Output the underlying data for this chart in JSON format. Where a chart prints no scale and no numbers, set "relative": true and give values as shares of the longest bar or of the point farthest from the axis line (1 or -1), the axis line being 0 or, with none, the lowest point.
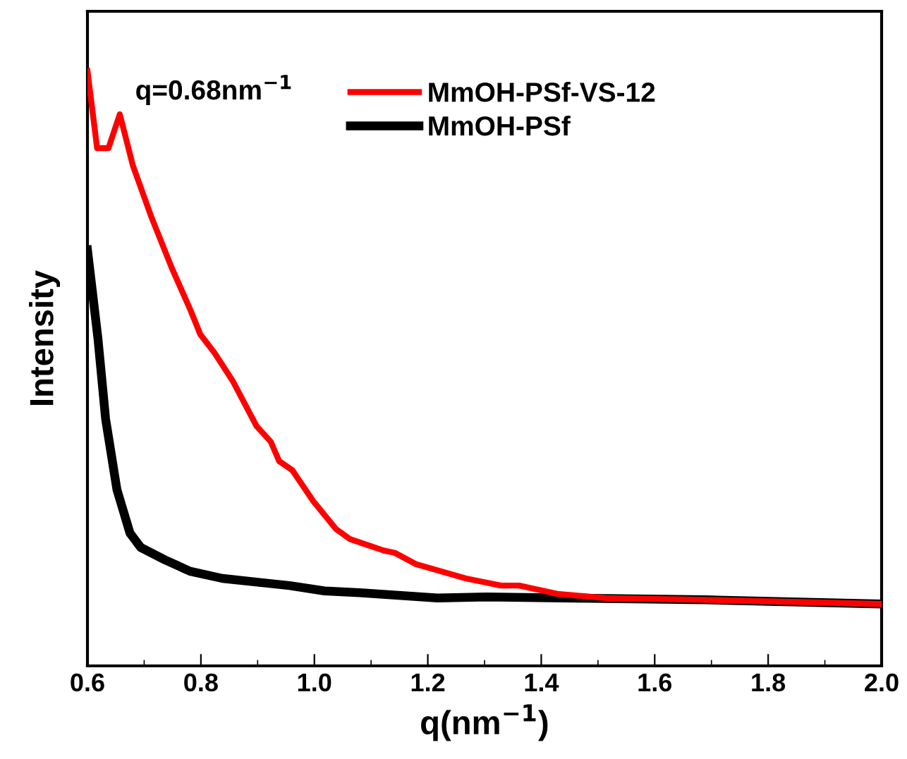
{
  "chart_data": {
    "type": "line",
    "relative": true,
    "xlabel": "q(nm$^{−1}$)",
    "ylabel": "Intensity",
    "xlim": [
      0.6,
      2.0
    ],
    "xticks": [
      {
        "value": 0.6,
        "label": "0.6"
      },
      {
        "value": 0.8,
        "label": "0.8"
      },
      {
        "value": 1.0,
        "label": "1.0"
      },
      {
        "value": 1.2,
        "label": "1.2"
      },
      {
        "value": 1.4,
        "label": "1.4"
      },
      {
        "value": 1.6,
        "label": "1.6"
      },
      {
        "value": 1.8,
        "label": "1.8"
      },
      {
        "value": 2.0,
        "label": "2.0"
      }
    ],
    "legend": "top right",
    "marker": "none",
    "line_style": "solid",
    "grid": false,
    "tick_labels": "x",
    "annotations": [
      "q=0.68nm$^{−1}$"
    ],
    "series": [
      {
        "name": "MmOH-PSf-VS-12",
        "color": "#ff0000",
        "x": [
          0.6,
          0.617,
          0.637,
          0.657,
          0.68,
          0.712,
          0.749,
          0.782,
          0.799,
          0.824,
          0.856,
          0.898,
          0.923,
          0.938,
          0.961,
          0.998,
          1.038,
          1.063,
          1.122,
          1.142,
          1.179,
          1.267,
          1.329,
          1.361,
          1.428,
          1.515,
          1.69,
          2.0
        ],
        "values": [
          1.0,
          0.87,
          0.87,
          0.927,
          0.841,
          0.756,
          0.668,
          0.597,
          0.557,
          0.526,
          0.479,
          0.403,
          0.377,
          0.344,
          0.329,
          0.277,
          0.23,
          0.213,
          0.194,
          0.19,
          0.171,
          0.147,
          0.135,
          0.135,
          0.121,
          0.114,
          0.111,
          0.104
        ]
      },
      {
        "name": "MmOH-PSf",
        "color": "#000000",
        "x": [
          0.6,
          0.6185,
          0.632,
          0.652,
          0.675,
          0.694,
          0.737,
          0.781,
          0.838,
          0.906,
          0.956,
          1.018,
          1.08,
          1.217,
          1.304,
          1.44,
          1.69,
          2.0
        ],
        "values": [
          0.699,
          0.55,
          0.415,
          0.296,
          0.223,
          0.199,
          0.178,
          0.159,
          0.147,
          0.14,
          0.135,
          0.126,
          0.123,
          0.114,
          0.116,
          0.114,
          0.111,
          0.104
        ]
      }
    ]
  }
}
